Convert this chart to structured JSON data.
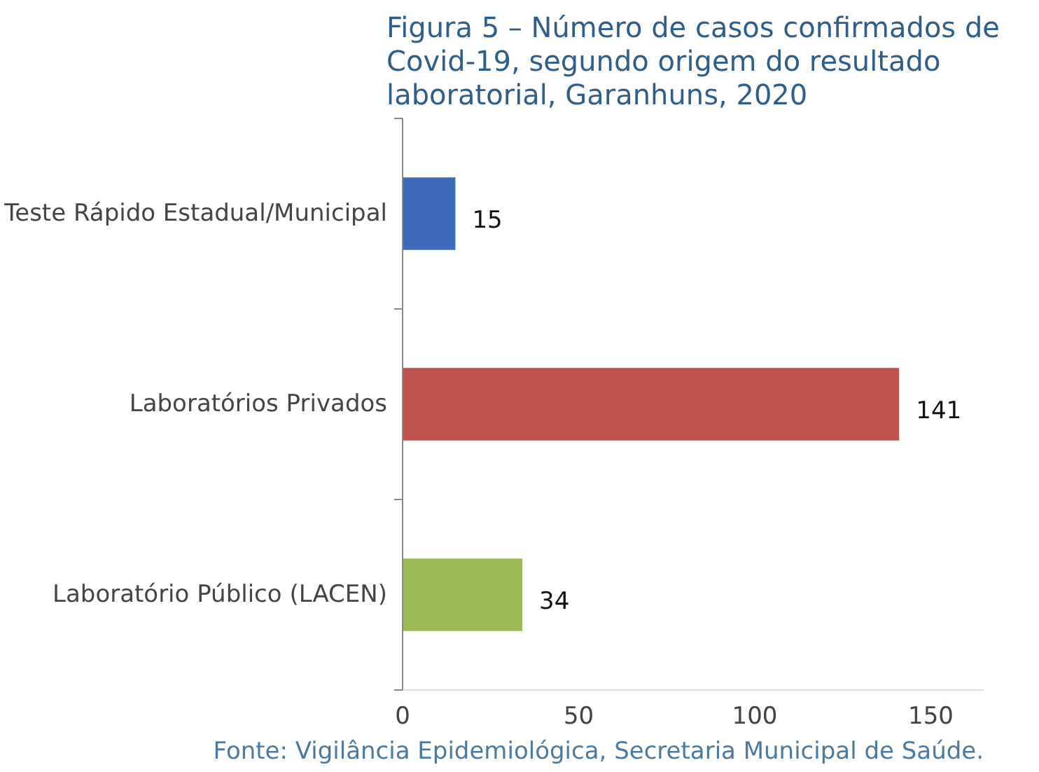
{
  "chart_data": {
    "type": "bar",
    "orientation": "horizontal",
    "title": "Figura 5 – Número de casos confirmados de Covid-19, segundo origem do resultado laboratorial, Garanhuns, 2020",
    "categories": [
      "Teste Rápido Estadual/Municipal",
      "Laboratórios Privados",
      "Laboratório Público (LACEN)"
    ],
    "values": [
      15,
      141,
      34
    ],
    "colors": [
      "#3d6cb8",
      "#c0504d",
      "#9bbb59"
    ],
    "xlim": [
      0,
      165
    ],
    "xticks": [
      0,
      50,
      100,
      150
    ],
    "grid": false,
    "data_labels": true,
    "annotations": [
      "Fonte: Vigilância Epidemiológica, Secretaria Municipal de Saúde."
    ]
  }
}
